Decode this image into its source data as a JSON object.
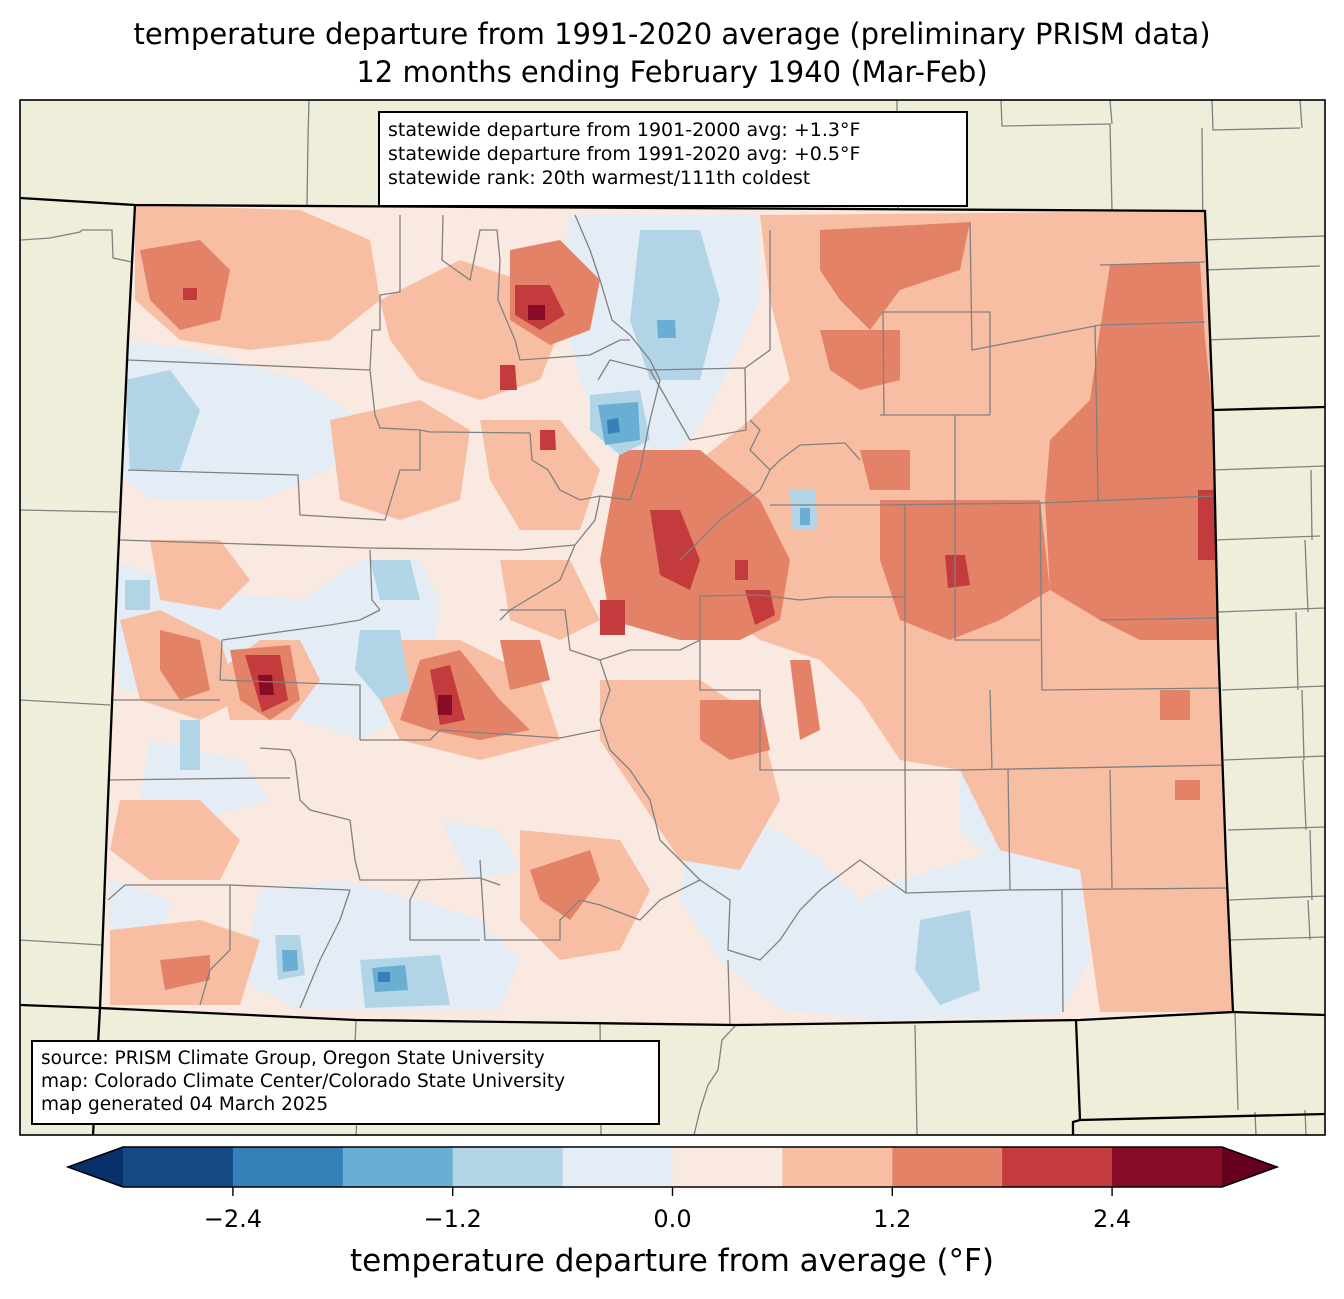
{
  "title": {
    "line1": "temperature departure from 1991-2020 average (preliminary PRISM data)",
    "line2": "12 months ending February 1940 (Mar-Feb)"
  },
  "stats_box": {
    "line1": "statewide departure from 1901-2000 avg: +1.3°F",
    "line2": "statewide departure from 1991-2020 avg: +0.5°F",
    "line3": "statewide rank: 20th warmest/111th coldest"
  },
  "credits_box": {
    "line1": "source: PRISM Climate Group, Oregon State University",
    "line2": "map: Colorado Climate Center/Colorado State University",
    "line3": "map generated 04 March 2025"
  },
  "colors": {
    "land_background": "#efeedb",
    "county_line": "#808080",
    "state_line": "#000000"
  },
  "chart_data": {
    "type": "heatmap",
    "title": "temperature departure from 1991-2020 average (preliminary PRISM data) — 12 months ending February 1940 (Mar-Feb)",
    "region": "Colorado",
    "units": "°F",
    "colorbar": {
      "label": "temperature departure from average (°F)",
      "levels": [
        -3.0,
        -2.4,
        -1.8,
        -1.2,
        -0.6,
        0.0,
        0.6,
        1.2,
        1.8,
        2.4,
        3.0
      ],
      "extend": "both",
      "ticks": [
        -2.4,
        -1.2,
        0.0,
        1.2,
        2.4
      ],
      "tick_labels": [
        "−2.4",
        "−1.2",
        "0.0",
        "1.2",
        "2.4"
      ],
      "under_color": "#08306b",
      "over_color": "#67001f",
      "bin_colors": [
        "#154a85",
        "#3580b9",
        "#6aafd3",
        "#b1d5e7",
        "#e4edf5",
        "#f9e9e0",
        "#f8bea4",
        "#e48268",
        "#c33b3c",
        "#880c26"
      ]
    },
    "statewide_departure_1901_2000": 1.3,
    "statewide_departure_1991_2020": 0.5,
    "statewide_rank_warmest": 20,
    "statewide_rank_coldest": 111
  }
}
